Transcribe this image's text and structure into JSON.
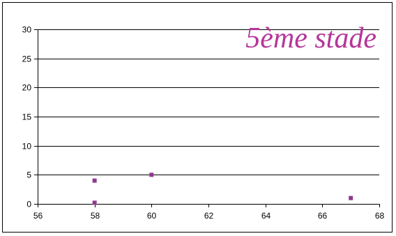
{
  "chart_data": {
    "type": "scatter",
    "title": "5ème stade",
    "xlabel": "",
    "ylabel": "",
    "xlim": [
      56,
      68
    ],
    "ylim": [
      0,
      30
    ],
    "x_ticks": [
      56,
      58,
      60,
      62,
      64,
      66,
      68
    ],
    "y_ticks": [
      0,
      5,
      10,
      15,
      20,
      25,
      30
    ],
    "grid": "horizontal",
    "legend": "none",
    "series": [
      {
        "points": [
          {
            "x": 58,
            "y": 4
          },
          {
            "x": 58,
            "y": 0.2
          },
          {
            "x": 60,
            "y": 5
          },
          {
            "x": 67,
            "y": 1
          }
        ]
      }
    ],
    "colors": {
      "marker": "#8e3a8e",
      "title": "#b5369a",
      "grid": "#000000"
    }
  }
}
